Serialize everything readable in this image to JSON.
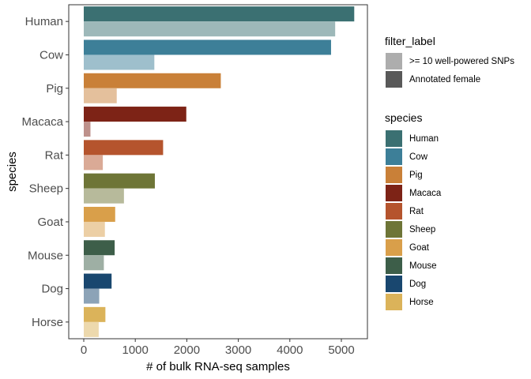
{
  "chart_data": {
    "type": "bar",
    "orientation": "horizontal",
    "xlabel": "# of bulk RNA-seq samples",
    "ylabel": "species",
    "xlim": [
      0,
      5500
    ],
    "xticks": [
      0,
      1000,
      2000,
      3000,
      4000,
      5000
    ],
    "categories": [
      "Human",
      "Cow",
      "Pig",
      "Macaca",
      "Rat",
      "Sheep",
      "Goat",
      "Mouse",
      "Dog",
      "Horse"
    ],
    "series": [
      {
        "name": "Annotated female",
        "values": [
          5250,
          4800,
          2660,
          1990,
          1540,
          1380,
          610,
          600,
          540,
          420
        ]
      },
      {
        "name": ">= 10 well-powered SNPs",
        "values": [
          4880,
          1370,
          640,
          130,
          370,
          780,
          410,
          390,
          300,
          290
        ]
      }
    ],
    "grid": false,
    "legend_position": "right"
  },
  "species_colors": {
    "Human": "#3b7072",
    "Cow": "#3d7f98",
    "Pig": "#c98038",
    "Macaca": "#7d2316",
    "Rat": "#b5542d",
    "Sheep": "#6e7537",
    "Goat": "#d99f4a",
    "Mouse": "#3d5e49",
    "Dog": "#19476f",
    "Horse": "#dbb35a"
  },
  "legend": {
    "filter_title": "filter_label",
    "filter_items": [
      {
        "label": ">= 10 well-powered SNPs",
        "color": "#adadad"
      },
      {
        "label": "Annotated female",
        "color": "#595959"
      }
    ],
    "species_title": "species",
    "species_items": [
      "Human",
      "Cow",
      "Pig",
      "Macaca",
      "Rat",
      "Sheep",
      "Goat",
      "Mouse",
      "Dog",
      "Horse"
    ]
  }
}
